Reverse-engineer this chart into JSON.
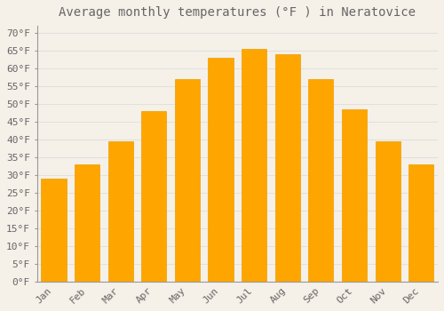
{
  "title": "Average monthly temperatures (°F ) in Neratovice",
  "months": [
    "Jan",
    "Feb",
    "Mar",
    "Apr",
    "May",
    "Jun",
    "Jul",
    "Aug",
    "Sep",
    "Oct",
    "Nov",
    "Dec"
  ],
  "values": [
    29.0,
    33.0,
    39.5,
    48.0,
    57.0,
    63.0,
    65.5,
    64.0,
    57.0,
    48.5,
    39.5,
    33.0
  ],
  "bar_color_top": "#FFCC44",
  "bar_color_bottom": "#FFA500",
  "bar_edge_color": "#E8A000",
  "background_color": "#F5F0E8",
  "grid_color": "#DDDDDD",
  "text_color": "#666666",
  "spine_color": "#999999",
  "ylim": [
    0,
    72
  ],
  "yticks": [
    0,
    5,
    10,
    15,
    20,
    25,
    30,
    35,
    40,
    45,
    50,
    55,
    60,
    65,
    70
  ],
  "title_fontsize": 10,
  "tick_fontsize": 8,
  "font_family": "monospace",
  "bar_width": 0.75
}
